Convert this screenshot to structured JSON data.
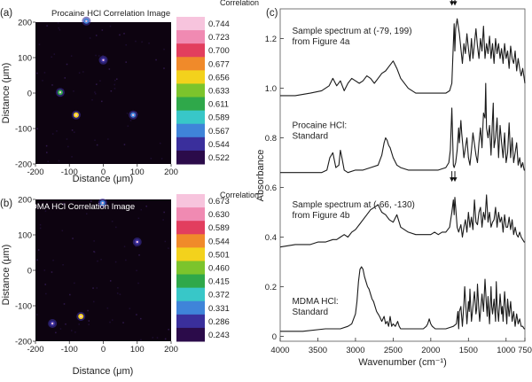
{
  "chart_data": [
    {
      "type": "heatmap",
      "panel_label": "(a)",
      "title": "Procaine HCl Correlation Image",
      "xlabel": "Distance (μm)",
      "ylabel": "Distance (μm)",
      "xlim": [
        -200,
        200
      ],
      "ylim": [
        -200,
        200
      ],
      "x_ticks": [
        "-200",
        "-100",
        "0",
        "100",
        "200"
      ],
      "y_ticks": [
        "200",
        "100",
        "0",
        "-100",
        "-200"
      ],
      "colorbar_label": "Correlation",
      "colorbar_ticks": [
        "0.744",
        "0.723",
        "0.700",
        "0.677",
        "0.656",
        "0.633",
        "0.611",
        "0.589",
        "0.567",
        "0.544",
        "0.522"
      ],
      "hotspots": [
        {
          "x": -80,
          "y": -62,
          "value": 0.656
        },
        {
          "x": -127,
          "y": 2,
          "value": 0.611
        },
        {
          "x": 88,
          "y": -62,
          "value": 0.56
        },
        {
          "x": 0,
          "y": 93,
          "value": 0.55
        },
        {
          "x": -50,
          "y": 203,
          "value": 0.56
        }
      ]
    },
    {
      "type": "heatmap",
      "panel_label": "(b)",
      "title": "MDMA HCl Correlation Image",
      "xlabel": "Distance (μm)",
      "ylabel": "Distance (μm)",
      "xlim": [
        -200,
        200
      ],
      "ylim": [
        -200,
        200
      ],
      "x_ticks": [
        "-200",
        "-100",
        "0",
        "100",
        "200"
      ],
      "y_ticks": [
        "200",
        "100",
        "0",
        "-100",
        "-200"
      ],
      "colorbar_label": "Correlation",
      "colorbar_ticks": [
        "0.673",
        "0.630",
        "0.589",
        "0.544",
        "0.501",
        "0.460",
        "0.415",
        "0.372",
        "0.331",
        "0.286",
        "0.243"
      ],
      "hotspots": [
        {
          "x": -66,
          "y": -130,
          "value": 0.501
        },
        {
          "x": -2,
          "y": 190,
          "value": 0.33
        },
        {
          "x": -150,
          "y": -150,
          "value": 0.3
        },
        {
          "x": 100,
          "y": 80,
          "value": 0.29
        }
      ]
    },
    {
      "type": "line",
      "panel_label": "(c)",
      "xlabel": "Wavenumber (cm⁻¹)",
      "ylabel": "Absorbance",
      "xlim": [
        4000,
        750
      ],
      "x_reversed": true,
      "ylim": [
        -0.02,
        1.32
      ],
      "x_ticks": [
        4000,
        3500,
        3000,
        2500,
        2000,
        1500,
        1000,
        750
      ],
      "y_ticks": [
        0,
        0.2,
        0.4,
        0.6,
        0.8,
        1.0,
        1.2
      ],
      "y_tick_labels": [
        "0",
        "0.2",
        "0.4",
        "0.6",
        "0.8",
        "1.0",
        "1.2"
      ],
      "series": [
        {
          "name": "Sample spectrum at (-79, 199) from Figure 4a",
          "x": [
            4000,
            3800,
            3600,
            3450,
            3350,
            3300,
            3250,
            3200,
            3150,
            3100,
            3050,
            3000,
            2950,
            2900,
            2850,
            2800,
            2750,
            2700,
            2650,
            2600,
            2550,
            2500,
            2450,
            2400,
            2300,
            2200,
            2100,
            2000,
            1900,
            1800,
            1750,
            1720,
            1700,
            1690,
            1680,
            1670,
            1650,
            1620,
            1600,
            1580,
            1560,
            1540,
            1520,
            1500,
            1480,
            1460,
            1440,
            1420,
            1400,
            1380,
            1360,
            1340,
            1320,
            1300,
            1280,
            1260,
            1240,
            1220,
            1200,
            1180,
            1160,
            1140,
            1120,
            1100,
            1080,
            1060,
            1040,
            1020,
            1000,
            980,
            960,
            940,
            920,
            900,
            880,
            860,
            840,
            820,
            800,
            780,
            760,
            750
          ],
          "y": [
            0.97,
            0.97,
            0.98,
            0.99,
            1.01,
            1.04,
            1.01,
            1.03,
            0.99,
            1.02,
            1.04,
            1.03,
            1.02,
            1.03,
            1.05,
            1.04,
            1.02,
            1.04,
            1.06,
            1.07,
            1.09,
            1.11,
            1.08,
            1.04,
            1.0,
            0.98,
            0.98,
            0.98,
            0.98,
            0.98,
            0.99,
            1.02,
            1.18,
            1.26,
            1.15,
            1.24,
            1.28,
            1.22,
            1.16,
            1.1,
            1.18,
            1.14,
            1.22,
            1.16,
            1.11,
            1.2,
            1.12,
            1.18,
            1.24,
            1.17,
            1.12,
            1.2,
            1.15,
            1.25,
            1.12,
            1.18,
            1.14,
            1.21,
            1.12,
            1.18,
            1.1,
            1.2,
            1.14,
            1.18,
            1.12,
            1.16,
            1.1,
            1.18,
            1.12,
            1.15,
            1.08,
            1.17,
            1.12,
            1.1,
            1.15,
            1.07,
            1.12,
            1.08,
            1.05,
            1.08,
            1.04,
            1.02
          ]
        },
        {
          "name": "Procaine HCl: Standard",
          "x": [
            4000,
            3800,
            3600,
            3450,
            3380,
            3340,
            3300,
            3260,
            3220,
            3200,
            3180,
            3150,
            3100,
            3000,
            2900,
            2800,
            2700,
            2650,
            2620,
            2600,
            2580,
            2560,
            2540,
            2500,
            2450,
            2400,
            2300,
            2200,
            2100,
            2000,
            1900,
            1800,
            1760,
            1740,
            1720,
            1710,
            1700,
            1690,
            1670,
            1650,
            1630,
            1620,
            1600,
            1590,
            1560,
            1540,
            1520,
            1500,
            1480,
            1460,
            1440,
            1400,
            1380,
            1360,
            1340,
            1320,
            1300,
            1280,
            1270,
            1260,
            1240,
            1220,
            1200,
            1180,
            1170,
            1160,
            1140,
            1120,
            1100,
            1080,
            1060,
            1040,
            1020,
            1000,
            980,
            960,
            940,
            920,
            900,
            880,
            860,
            840,
            820,
            800,
            780,
            760,
            750
          ],
          "y": [
            0.66,
            0.66,
            0.66,
            0.66,
            0.67,
            0.72,
            0.74,
            0.68,
            0.69,
            0.75,
            0.72,
            0.67,
            0.66,
            0.67,
            0.67,
            0.68,
            0.69,
            0.73,
            0.78,
            0.8,
            0.79,
            0.77,
            0.76,
            0.72,
            0.69,
            0.68,
            0.67,
            0.67,
            0.67,
            0.67,
            0.67,
            0.68,
            0.7,
            0.75,
            0.92,
            0.8,
            0.69,
            0.68,
            0.7,
            0.75,
            0.84,
            0.78,
            0.87,
            0.82,
            0.72,
            0.76,
            0.8,
            0.72,
            0.69,
            0.75,
            0.82,
            0.73,
            0.7,
            0.78,
            0.84,
            0.76,
            0.9,
            0.88,
            1.02,
            0.84,
            0.8,
            0.85,
            0.73,
            0.88,
            0.94,
            0.76,
            0.8,
            0.88,
            0.72,
            0.85,
            0.78,
            0.72,
            0.82,
            0.7,
            0.74,
            0.86,
            0.72,
            0.8,
            0.7,
            0.74,
            0.78,
            0.69,
            0.72,
            0.68,
            0.7,
            0.67,
            0.67
          ]
        },
        {
          "name": "Sample spectrum at (-66, -130) from Figure 4b",
          "x": [
            4000,
            3800,
            3600,
            3500,
            3400,
            3300,
            3250,
            3200,
            3150,
            3100,
            3050,
            3000,
            2950,
            2900,
            2850,
            2800,
            2750,
            2700,
            2650,
            2600,
            2550,
            2500,
            2450,
            2400,
            2300,
            2200,
            2100,
            2000,
            1950,
            1900,
            1850,
            1800,
            1750,
            1720,
            1700,
            1690,
            1680,
            1670,
            1650,
            1630,
            1600,
            1580,
            1560,
            1540,
            1520,
            1500,
            1480,
            1460,
            1440,
            1420,
            1400,
            1380,
            1360,
            1340,
            1320,
            1300,
            1280,
            1260,
            1240,
            1220,
            1200,
            1180,
            1160,
            1140,
            1120,
            1100,
            1080,
            1060,
            1040,
            1020,
            1000,
            980,
            960,
            940,
            920,
            900,
            880,
            860,
            840,
            820,
            800,
            780,
            760,
            750
          ],
          "y": [
            0.36,
            0.37,
            0.37,
            0.38,
            0.38,
            0.39,
            0.39,
            0.4,
            0.41,
            0.4,
            0.42,
            0.43,
            0.45,
            0.47,
            0.49,
            0.51,
            0.52,
            0.53,
            0.5,
            0.49,
            0.47,
            0.46,
            0.49,
            0.44,
            0.42,
            0.41,
            0.41,
            0.41,
            0.42,
            0.41,
            0.42,
            0.42,
            0.44,
            0.5,
            0.55,
            0.49,
            0.56,
            0.52,
            0.44,
            0.42,
            0.45,
            0.4,
            0.44,
            0.47,
            0.42,
            0.5,
            0.44,
            0.48,
            0.43,
            0.55,
            0.46,
            0.45,
            0.5,
            0.52,
            0.44,
            0.5,
            0.47,
            0.57,
            0.46,
            0.5,
            0.44,
            0.46,
            0.47,
            0.52,
            0.44,
            0.5,
            0.46,
            0.48,
            0.42,
            0.49,
            0.44,
            0.44,
            0.48,
            0.43,
            0.47,
            0.41,
            0.44,
            0.41,
            0.4,
            0.42,
            0.4,
            0.39,
            0.38,
            0.38
          ]
        },
        {
          "name": "MDMA HCl: Standard",
          "x": [
            4000,
            3700,
            3400,
            3200,
            3100,
            3050,
            3000,
            2980,
            2960,
            2940,
            2920,
            2900,
            2880,
            2860,
            2840,
            2820,
            2800,
            2780,
            2760,
            2740,
            2720,
            2700,
            2680,
            2650,
            2620,
            2600,
            2580,
            2560,
            2540,
            2520,
            2500,
            2470,
            2440,
            2420,
            2400,
            2300,
            2200,
            2100,
            2060,
            2040,
            2020,
            2000,
            1980,
            1940,
            1900,
            1800,
            1700,
            1660,
            1640,
            1630,
            1620,
            1600,
            1580,
            1560,
            1550,
            1520,
            1500,
            1490,
            1480,
            1460,
            1440,
            1420,
            1400,
            1390,
            1380,
            1360,
            1350,
            1320,
            1300,
            1280,
            1260,
            1250,
            1240,
            1220,
            1200,
            1190,
            1180,
            1160,
            1140,
            1130,
            1120,
            1100,
            1080,
            1060,
            1050,
            1040,
            1020,
            1000,
            990,
            980,
            960,
            940,
            920,
            900,
            880,
            860,
            840,
            820,
            800,
            780,
            760,
            750
          ],
          "y": [
            0.02,
            0.02,
            0.03,
            0.03,
            0.04,
            0.05,
            0.09,
            0.14,
            0.22,
            0.27,
            0.28,
            0.27,
            0.24,
            0.22,
            0.2,
            0.19,
            0.17,
            0.15,
            0.14,
            0.12,
            0.1,
            0.09,
            0.08,
            0.06,
            0.08,
            0.05,
            0.06,
            0.04,
            0.08,
            0.04,
            0.05,
            0.04,
            0.06,
            0.04,
            0.03,
            0.03,
            0.03,
            0.03,
            0.04,
            0.05,
            0.07,
            0.05,
            0.04,
            0.03,
            0.03,
            0.03,
            0.04,
            0.05,
            0.1,
            0.03,
            0.1,
            0.12,
            0.04,
            0.13,
            0.2,
            0.05,
            0.14,
            0.1,
            0.19,
            0.06,
            0.12,
            0.18,
            0.09,
            0.11,
            0.21,
            0.1,
            0.06,
            0.17,
            0.1,
            0.23,
            0.12,
            0.08,
            0.16,
            0.05,
            0.2,
            0.12,
            0.09,
            0.15,
            0.06,
            0.22,
            0.13,
            0.06,
            0.17,
            0.09,
            0.12,
            0.06,
            0.18,
            0.09,
            0.05,
            0.15,
            0.08,
            0.14,
            0.06,
            0.1,
            0.04,
            0.09,
            0.05,
            0.07,
            0.04,
            0.04,
            0.03,
            0.03
          ]
        }
      ],
      "annotations": [
        {
          "text": "Sample spectrum at (-79, 199)",
          "line2": "from Figure 4a"
        },
        {
          "text": "Procaine HCl:",
          "line2": "Standard"
        },
        {
          "text": "Sample spectrum at (-66, -130)",
          "line2": "from Figure 4b"
        },
        {
          "text": "MDMA HCl:",
          "line2": "Standard"
        }
      ],
      "arrows": [
        {
          "x": 1720,
          "y": 1.34
        },
        {
          "x": 1680,
          "y": 1.34
        },
        {
          "x": 1720,
          "y": 0.63
        },
        {
          "x": 1680,
          "y": 0.63
        }
      ]
    }
  ],
  "colors": {
    "heatmap_background": "#0d0310",
    "colorbar_a": [
      "#f7c4dd",
      "#f08ab2",
      "#e23e5e",
      "#f08a2a",
      "#f3d21c",
      "#7cc42c",
      "#2fa84a",
      "#38c7c8",
      "#3f84d9",
      "#3a2f9c",
      "#2b0b4a"
    ],
    "colorbar_b": [
      "#f7c4dd",
      "#f08ab2",
      "#e23e5e",
      "#f08a2a",
      "#f3d21c",
      "#7cc42c",
      "#2fa84a",
      "#38c7c8",
      "#3f84d9",
      "#3a2f9c",
      "#2b0b4a"
    ],
    "spectrum_line": "#1a1a1a"
  }
}
